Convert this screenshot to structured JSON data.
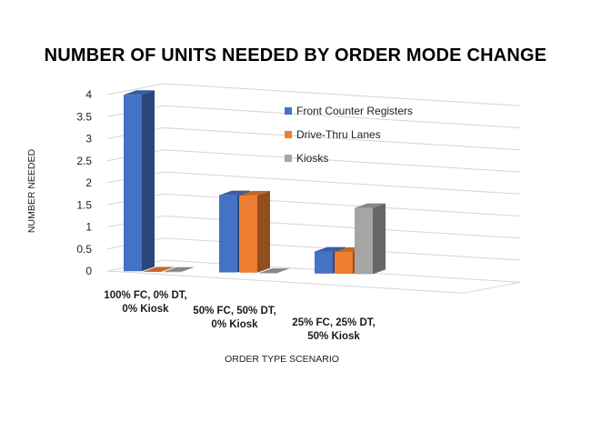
{
  "chart_data": {
    "type": "bar",
    "title": "NUMBER OF UNITS NEEDED BY ORDER MODE CHANGE",
    "xlabel": "ORDER TYPE SCENARIO",
    "ylabel": "NUMBER NEEDED",
    "ylim": [
      0,
      4
    ],
    "yticks": [
      "0",
      "0.5",
      "1",
      "1.5",
      "2",
      "2.5",
      "3",
      "3.5",
      "4"
    ],
    "grid": true,
    "legend_position": "right",
    "categories": [
      [
        "100% FC, 0% DT,",
        "0% Kiosk"
      ],
      [
        "50% FC, 50% DT,",
        "0% Kiosk"
      ],
      [
        "25% FC, 25% DT,",
        "50% Kiosk"
      ]
    ],
    "series": [
      {
        "name": "Front Counter Registers",
        "values": [
          4,
          1.75,
          0.5
        ],
        "color": "#4472C4"
      },
      {
        "name": "Drive-Thru Lanes",
        "values": [
          0,
          1.75,
          0.5
        ],
        "color": "#ED7D31"
      },
      {
        "name": "Kiosks",
        "values": [
          0,
          0,
          1.5
        ],
        "color": "#A5A5A5"
      }
    ]
  }
}
